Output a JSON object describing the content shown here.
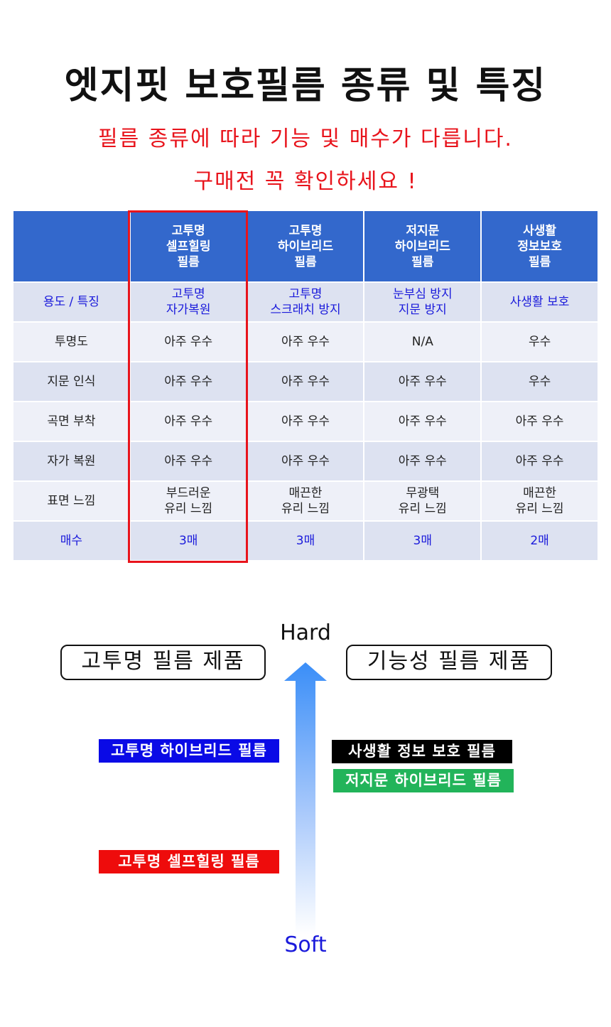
{
  "title": "엣지핏 보호필름 종류 및 특징",
  "subtitle_line1": "필름 종류에 따라 기능 및 매수가 다릅니다.",
  "subtitle_line2": "구매전 꼭 확인하세요 !",
  "table": {
    "headers": [
      "",
      "고투명\n셀프힐링\n필름",
      "고투명\n하이브리드\n필름",
      "저지문\n하이브리드\n필름",
      "사생활\n정보보호\n필름"
    ],
    "rows": [
      [
        "용도 / 특징",
        "고투명\n자가복원",
        "고투명\n스크래치 방지",
        "눈부심 방지\n지문 방지",
        "사생활 보호"
      ],
      [
        "투명도",
        "아주 우수",
        "아주 우수",
        "N/A",
        "우수"
      ],
      [
        "지문 인식",
        "아주 우수",
        "아주 우수",
        "아주 우수",
        "우수"
      ],
      [
        "곡면 부착",
        "아주 우수",
        "아주 우수",
        "아주 우수",
        "아주 우수"
      ],
      [
        "자가 복원",
        "아주 우수",
        "아주 우수",
        "아주 우수",
        "아주 우수"
      ],
      [
        "표면 느낌",
        "부드러운\n유리 느낌",
        "매끈한\n유리 느낌",
        "무광택\n유리 느낌",
        "매끈한\n유리 느낌"
      ],
      [
        "매수",
        "3매",
        "3매",
        "3매",
        "2매"
      ]
    ],
    "highlighted_column": 1,
    "highlight_color": "#e8141c",
    "header_color": "#3368cc"
  },
  "diagram": {
    "top_label": "Hard",
    "bottom_label": "Soft",
    "left_box": "고투명 필름 제품",
    "right_box": "기능성 필름 제품",
    "labels": [
      {
        "text": "고투명 하이브리드 필름",
        "color": "#0a0ae6"
      },
      {
        "text": "사생활 정보 보호 필름",
        "color": "#000000"
      },
      {
        "text": "저지문 하이브리드 필름",
        "color": "#22b45a"
      },
      {
        "text": "고투명 셀프힐링 필름",
        "color": "#ee0c0c"
      }
    ]
  }
}
